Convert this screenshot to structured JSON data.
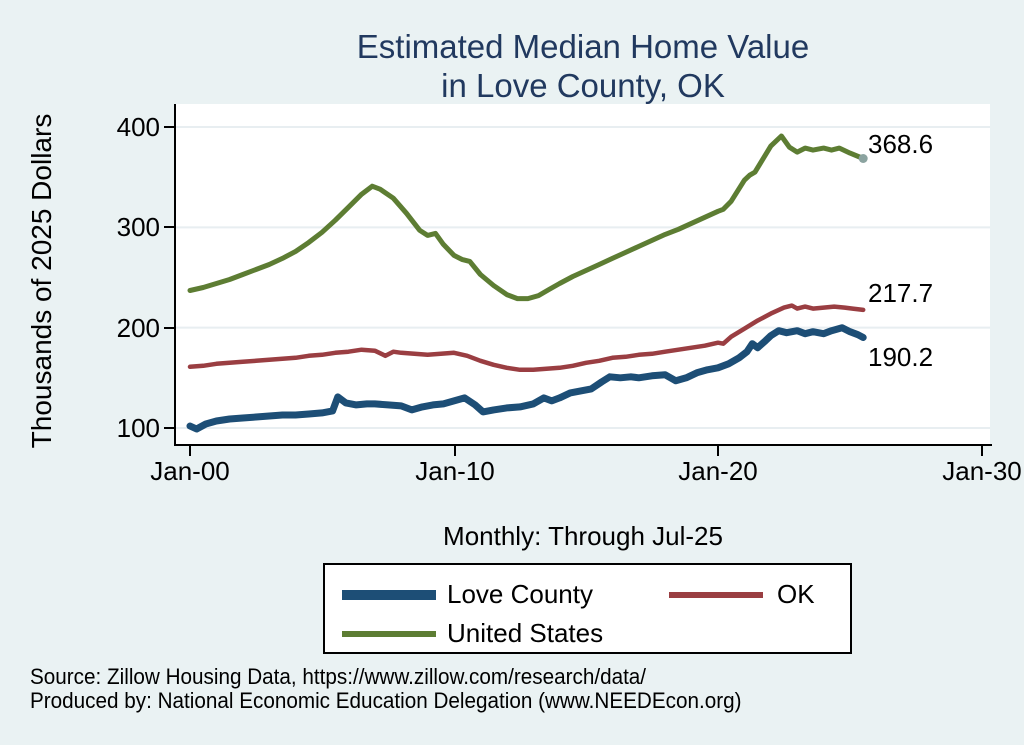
{
  "title": {
    "line1": "Estimated Median Home Value",
    "line2": "in Love County, OK"
  },
  "y_axis": {
    "label": "Thousands of 2025 Dollars",
    "ticks": [
      "400",
      "300",
      "200",
      "100"
    ]
  },
  "x_axis": {
    "ticks": [
      "Jan-00",
      "Jan-10",
      "Jan-20",
      "Jan-30"
    ],
    "subtitle": "Monthly: Through Jul-25"
  },
  "end_labels": [
    {
      "series": "United States",
      "value": "368.6"
    },
    {
      "series": "OK",
      "value": "217.7"
    },
    {
      "series": "Love County",
      "value": "190.2"
    }
  ],
  "legend": {
    "items": [
      {
        "label": "Love County",
        "color": "#1d4e76"
      },
      {
        "label": "OK",
        "color": "#9a3e42"
      },
      {
        "label": "United States",
        "color": "#5d7d33"
      }
    ]
  },
  "source": {
    "line1": "Source: Zillow Housing Data, https://www.zillow.com/research/data/",
    "line2": "Produced by: National Economic Education Delegation (www.NEEDEcon.org)"
  },
  "colors": {
    "background": "#eaf2f3",
    "plot_background": "#ffffff",
    "gridline": "#e8eef1",
    "axis": "#000000",
    "title_text": "#21395f",
    "navy": "#1d4e76",
    "maroon": "#9a3e42",
    "olive": "#5d7d33",
    "end_marker": "#8ba3a0"
  },
  "chart_data": {
    "type": "line",
    "title": "Estimated Median Home Value in Love County, OK",
    "xlabel": "Monthly: Through Jul-25",
    "ylabel": "Thousands of 2025 Dollars",
    "x_unit": "decimal year (2000.0 = Jan-2000)",
    "xlim": [
      2000,
      2030
    ],
    "x_tick_years": [
      2000,
      2010,
      2020,
      2030
    ],
    "x_tick_labels": [
      "Jan-00",
      "Jan-10",
      "Jan-20",
      "Jan-30"
    ],
    "ylim": [
      84,
      424
    ],
    "gridlines": [
      100,
      200,
      300,
      400
    ],
    "grid": true,
    "legend_position": "bottom",
    "end_values": {
      "Love County": 190.2,
      "OK": 217.7,
      "United States": 368.6
    },
    "series": [
      {
        "name": "United States",
        "color": "#5d7d33",
        "line_width": 5,
        "end_marker": true,
        "points": [
          [
            2000,
            237
          ],
          [
            2000.5,
            240
          ],
          [
            2001,
            244
          ],
          [
            2001.5,
            248
          ],
          [
            2002,
            253
          ],
          [
            2002.5,
            258
          ],
          [
            2003,
            263
          ],
          [
            2003.5,
            269
          ],
          [
            2004,
            276
          ],
          [
            2004.5,
            285
          ],
          [
            2005,
            295
          ],
          [
            2005.5,
            307
          ],
          [
            2006,
            320
          ],
          [
            2006.5,
            333
          ],
          [
            2006.9,
            341
          ],
          [
            2007.2,
            338
          ],
          [
            2007.7,
            329
          ],
          [
            2008.2,
            314
          ],
          [
            2008.7,
            297
          ],
          [
            2009,
            292
          ],
          [
            2009.3,
            294
          ],
          [
            2009.6,
            283
          ],
          [
            2010,
            272
          ],
          [
            2010.3,
            268
          ],
          [
            2010.6,
            266
          ],
          [
            2011,
            253
          ],
          [
            2011.5,
            242
          ],
          [
            2012,
            233
          ],
          [
            2012.4,
            229
          ],
          [
            2012.8,
            229
          ],
          [
            2013.2,
            232
          ],
          [
            2013.6,
            238
          ],
          [
            2014,
            244
          ],
          [
            2014.5,
            251
          ],
          [
            2015,
            257
          ],
          [
            2015.5,
            263
          ],
          [
            2016,
            269
          ],
          [
            2016.5,
            275
          ],
          [
            2017,
            281
          ],
          [
            2017.5,
            287
          ],
          [
            2018,
            293
          ],
          [
            2018.5,
            298
          ],
          [
            2019,
            304
          ],
          [
            2019.5,
            310
          ],
          [
            2020,
            316
          ],
          [
            2020.2,
            318
          ],
          [
            2020.5,
            326
          ],
          [
            2021,
            347
          ],
          [
            2021.2,
            352
          ],
          [
            2021.4,
            355
          ],
          [
            2021.7,
            368
          ],
          [
            2022,
            381
          ],
          [
            2022.4,
            391
          ],
          [
            2022.7,
            380
          ],
          [
            2023,
            375
          ],
          [
            2023.3,
            379
          ],
          [
            2023.6,
            377
          ],
          [
            2024,
            379
          ],
          [
            2024.3,
            377
          ],
          [
            2024.6,
            379
          ],
          [
            2025,
            374
          ],
          [
            2025.5,
            368.6
          ]
        ]
      },
      {
        "name": "OK",
        "color": "#9a3e42",
        "line_width": 4.5,
        "end_marker": false,
        "points": [
          [
            2000,
            161
          ],
          [
            2000.5,
            162
          ],
          [
            2001,
            164
          ],
          [
            2001.5,
            165
          ],
          [
            2002,
            166
          ],
          [
            2002.5,
            167
          ],
          [
            2003,
            168
          ],
          [
            2003.5,
            169
          ],
          [
            2004,
            170
          ],
          [
            2004.5,
            172
          ],
          [
            2005,
            173
          ],
          [
            2005.5,
            175
          ],
          [
            2006,
            176
          ],
          [
            2006.5,
            178
          ],
          [
            2007,
            177
          ],
          [
            2007.4,
            172
          ],
          [
            2007.7,
            176
          ],
          [
            2008,
            175
          ],
          [
            2008.5,
            174
          ],
          [
            2009,
            173
          ],
          [
            2009.5,
            174
          ],
          [
            2010,
            175
          ],
          [
            2010.5,
            172
          ],
          [
            2011,
            167
          ],
          [
            2011.5,
            163
          ],
          [
            2012,
            160
          ],
          [
            2012.5,
            158
          ],
          [
            2013,
            158
          ],
          [
            2013.5,
            159
          ],
          [
            2014,
            160
          ],
          [
            2014.5,
            162
          ],
          [
            2015,
            165
          ],
          [
            2015.5,
            167
          ],
          [
            2016,
            170
          ],
          [
            2016.5,
            171
          ],
          [
            2017,
            173
          ],
          [
            2017.5,
            174
          ],
          [
            2018,
            176
          ],
          [
            2018.5,
            178
          ],
          [
            2019,
            180
          ],
          [
            2019.5,
            182
          ],
          [
            2020,
            185
          ],
          [
            2020.2,
            184
          ],
          [
            2020.5,
            191
          ],
          [
            2021,
            199
          ],
          [
            2021.5,
            207
          ],
          [
            2022,
            214
          ],
          [
            2022.5,
            220
          ],
          [
            2022.8,
            222
          ],
          [
            2023,
            219
          ],
          [
            2023.3,
            221
          ],
          [
            2023.6,
            219
          ],
          [
            2024,
            220
          ],
          [
            2024.4,
            221
          ],
          [
            2024.8,
            220
          ],
          [
            2025.1,
            219
          ],
          [
            2025.5,
            217.7
          ]
        ]
      },
      {
        "name": "Love County",
        "color": "#1d4e76",
        "line_width": 7,
        "end_marker": false,
        "points": [
          [
            2000,
            102
          ],
          [
            2000.25,
            99
          ],
          [
            2000.6,
            104
          ],
          [
            2001,
            107
          ],
          [
            2001.5,
            109
          ],
          [
            2002,
            110
          ],
          [
            2002.5,
            111
          ],
          [
            2003,
            112
          ],
          [
            2003.5,
            113
          ],
          [
            2004,
            113
          ],
          [
            2004.5,
            114
          ],
          [
            2005,
            115
          ],
          [
            2005.4,
            117
          ],
          [
            2005.6,
            131
          ],
          [
            2005.9,
            125
          ],
          [
            2006.3,
            123
          ],
          [
            2006.7,
            124
          ],
          [
            2007,
            124
          ],
          [
            2007.5,
            123
          ],
          [
            2008,
            122
          ],
          [
            2008.4,
            118
          ],
          [
            2008.8,
            121
          ],
          [
            2009.2,
            123
          ],
          [
            2009.6,
            124
          ],
          [
            2010,
            127
          ],
          [
            2010.4,
            130
          ],
          [
            2010.8,
            123
          ],
          [
            2011.1,
            116
          ],
          [
            2011.5,
            118
          ],
          [
            2012,
            120
          ],
          [
            2012.5,
            121
          ],
          [
            2013,
            124
          ],
          [
            2013.4,
            130
          ],
          [
            2013.7,
            127
          ],
          [
            2014,
            130
          ],
          [
            2014.4,
            135
          ],
          [
            2014.8,
            137
          ],
          [
            2015.2,
            139
          ],
          [
            2015.6,
            146
          ],
          [
            2015.9,
            151
          ],
          [
            2016.3,
            150
          ],
          [
            2016.7,
            151
          ],
          [
            2017,
            150
          ],
          [
            2017.5,
            152
          ],
          [
            2018,
            153
          ],
          [
            2018.4,
            147
          ],
          [
            2018.8,
            150
          ],
          [
            2019.2,
            155
          ],
          [
            2019.6,
            158
          ],
          [
            2020,
            160
          ],
          [
            2020.4,
            164
          ],
          [
            2020.8,
            170
          ],
          [
            2021.1,
            176
          ],
          [
            2021.3,
            184
          ],
          [
            2021.5,
            180
          ],
          [
            2021.8,
            187
          ],
          [
            2022,
            192
          ],
          [
            2022.3,
            197
          ],
          [
            2022.6,
            195
          ],
          [
            2023,
            197
          ],
          [
            2023.3,
            194
          ],
          [
            2023.6,
            196
          ],
          [
            2024,
            194
          ],
          [
            2024.3,
            197
          ],
          [
            2024.7,
            200
          ],
          [
            2025,
            196
          ],
          [
            2025.3,
            193
          ],
          [
            2025.5,
            190.2
          ]
        ]
      }
    ]
  }
}
